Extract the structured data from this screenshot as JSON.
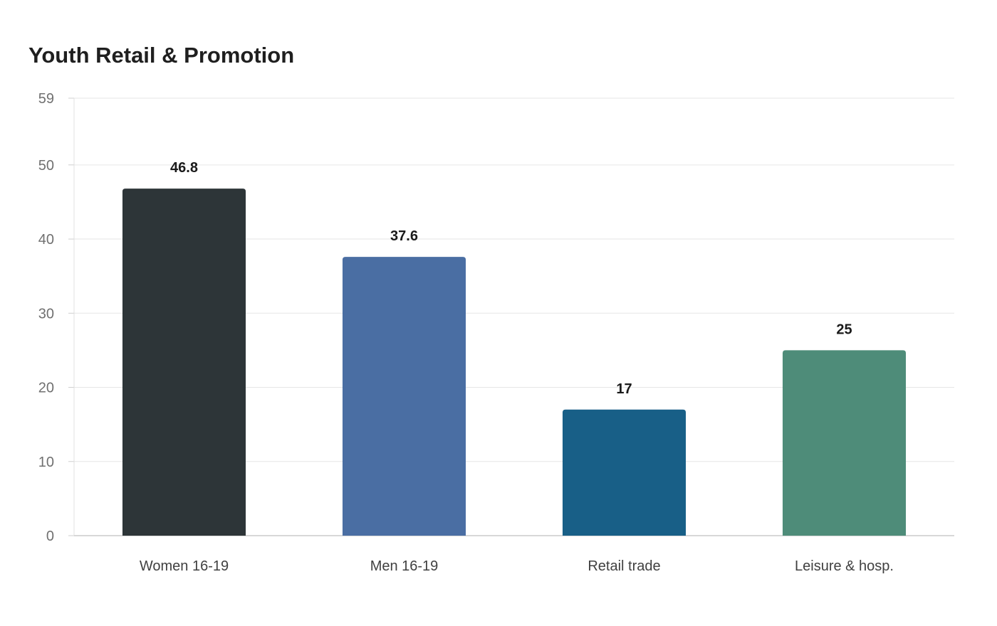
{
  "chart_data": {
    "type": "bar",
    "title": "Youth Retail & Promotion",
    "xlabel": "",
    "ylabel": "",
    "categories": [
      "Women 16-19",
      "Men 16-19",
      "Retail trade",
      "Leisure & hosp."
    ],
    "values": [
      46.8,
      37.6,
      17,
      25
    ],
    "value_labels": [
      "46.8",
      "37.6",
      "17",
      "25"
    ],
    "bar_colors": [
      "#2d3538",
      "#4a6ea3",
      "#185f87",
      "#4e8c79"
    ],
    "ylim": [
      0,
      59
    ],
    "yticks": [
      0,
      10,
      20,
      30,
      40,
      50,
      59
    ],
    "grid": true,
    "legend": "none"
  }
}
